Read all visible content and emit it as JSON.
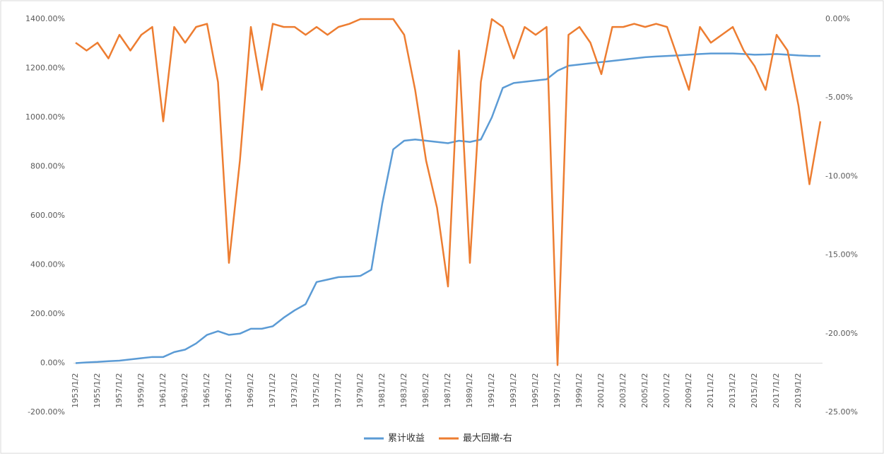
{
  "chart_data": {
    "type": "line",
    "categories": [
      "1953/1/2",
      null,
      "1955/1/2",
      null,
      "1957/1/2",
      null,
      "1959/1/2",
      null,
      "1961/1/2",
      null,
      "1963/1/2",
      null,
      "1965/1/2",
      null,
      "1967/1/2",
      null,
      "1969/1/2",
      null,
      "1971/1/2",
      null,
      "1973/1/2",
      null,
      "1975/1/2",
      null,
      "1977/1/2",
      null,
      "1979/1/2",
      null,
      "1981/1/2",
      null,
      "1983/1/2",
      null,
      "1985/1/2",
      null,
      "1987/1/2",
      null,
      "1989/1/2",
      null,
      "1991/1/2",
      null,
      "1993/1/2",
      null,
      "1995/1/2",
      null,
      "1997/1/2",
      null,
      "1999/1/2",
      null,
      "2001/1/2",
      null,
      "2003/1/2",
      null,
      "2005/1/2",
      null,
      "2007/1/2",
      null,
      "2009/1/2",
      null,
      "2011/1/2",
      null,
      "2013/1/2",
      null,
      "2015/1/2",
      null,
      "2017/1/2",
      null,
      "2019/1/2",
      null,
      null
    ],
    "series": [
      {
        "name": "累计收益",
        "color": "#5b9bd5",
        "values": [
          0,
          3,
          5,
          8,
          10,
          15,
          20,
          25,
          25,
          45,
          55,
          80,
          115,
          130,
          115,
          120,
          140,
          140,
          150,
          185,
          215,
          240,
          330,
          340,
          350,
          352,
          355,
          380,
          650,
          870,
          905,
          910,
          905,
          900,
          895,
          905,
          900,
          910,
          1000,
          1120,
          1140,
          1145,
          1150,
          1155,
          1190,
          1210,
          1215,
          1220,
          1225,
          1230,
          1235,
          1240,
          1245,
          1248,
          1250,
          1252,
          1255,
          1258,
          1260,
          1260,
          1260,
          1258,
          1255,
          1256,
          1258,
          1255,
          1252,
          1250,
          1250
        ]
      },
      {
        "name": "最大回撤-右",
        "color": "#ed7d31",
        "axis": "y2",
        "values": [
          -1.5,
          -2,
          -1.5,
          -2.5,
          -1,
          -2,
          -1,
          -0.5,
          -6.5,
          -0.5,
          -1.5,
          -0.5,
          -0.3,
          -4,
          -15.5,
          -9,
          -0.5,
          -4.5,
          -0.3,
          -0.5,
          -0.5,
          -1,
          -0.5,
          -1,
          -0.5,
          -0.3,
          0,
          0,
          0,
          0,
          -1,
          -4.5,
          -9,
          -12,
          -17,
          -2,
          -15.5,
          -4,
          0,
          -0.5,
          -2.5,
          -0.5,
          -1,
          -0.5,
          -22,
          -1,
          -0.5,
          -1.5,
          -3.5,
          -0.5,
          -0.5,
          -0.3,
          -0.5,
          -0.3,
          -0.5,
          -2.5,
          -4.5,
          -0.5,
          -1.5,
          -1,
          -0.5,
          -2,
          -3,
          -4.5,
          -1,
          -2,
          -5.5,
          -10.5,
          -6.5
        ]
      }
    ],
    "ylim": [
      -200,
      1400
    ],
    "yticks": [
      {
        "value": -200,
        "label": "-200.00%"
      },
      {
        "value": 0,
        "label": "0.00%"
      },
      {
        "value": 200,
        "label": "200.00%"
      },
      {
        "value": 400,
        "label": "400.00%"
      },
      {
        "value": 600,
        "label": "600.00%"
      },
      {
        "value": 800,
        "label": "800.00%"
      },
      {
        "value": 1000,
        "label": "1000.00%"
      },
      {
        "value": 1200,
        "label": "1200.00%"
      },
      {
        "value": 1400,
        "label": "1400.00%"
      }
    ],
    "y2lim": [
      -25,
      0
    ],
    "y2ticks": [
      {
        "value": -25,
        "label": "-25.00%"
      },
      {
        "value": -20,
        "label": "-20.00%"
      },
      {
        "value": -15,
        "label": "-15.00%"
      },
      {
        "value": -10,
        "label": "-10.00%"
      },
      {
        "value": -5,
        "label": "-5.00%"
      },
      {
        "value": 0,
        "label": "0.00%"
      }
    ],
    "legend": "bottom"
  }
}
